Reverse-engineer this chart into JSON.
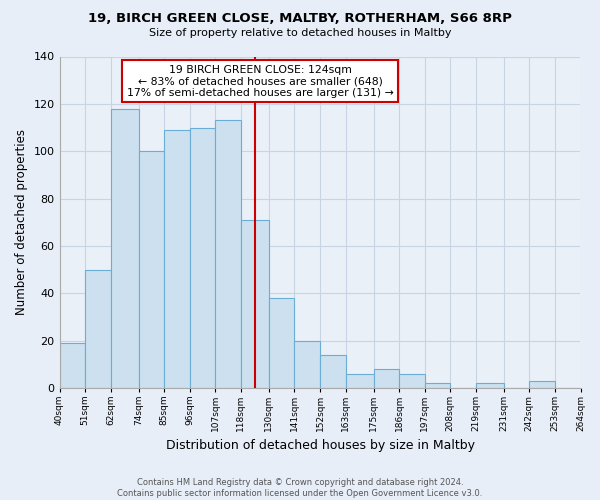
{
  "title": "19, BIRCH GREEN CLOSE, MALTBY, ROTHERHAM, S66 8RP",
  "subtitle": "Size of property relative to detached houses in Maltby",
  "xlabel": "Distribution of detached houses by size in Maltby",
  "ylabel": "Number of detached properties",
  "footer_line1": "Contains HM Land Registry data © Crown copyright and database right 2024.",
  "footer_line2": "Contains public sector information licensed under the Open Government Licence v3.0.",
  "bin_edges": [
    40,
    51,
    62,
    74,
    85,
    96,
    107,
    118,
    130,
    141,
    152,
    163,
    175,
    186,
    197,
    208,
    219,
    231,
    242,
    253,
    264
  ],
  "bar_heights": [
    19,
    50,
    118,
    100,
    109,
    110,
    113,
    71,
    38,
    20,
    14,
    6,
    8,
    6,
    2,
    0,
    2,
    0,
    3,
    0
  ],
  "tick_labels": [
    "40sqm",
    "51sqm",
    "62sqm",
    "74sqm",
    "85sqm",
    "96sqm",
    "107sqm",
    "118sqm",
    "130sqm",
    "141sqm",
    "152sqm",
    "163sqm",
    "175sqm",
    "186sqm",
    "197sqm",
    "208sqm",
    "219sqm",
    "231sqm",
    "242sqm",
    "253sqm",
    "264sqm"
  ],
  "tick_positions": [
    40,
    51,
    62,
    74,
    85,
    96,
    107,
    118,
    130,
    141,
    152,
    163,
    175,
    186,
    197,
    208,
    219,
    231,
    242,
    253,
    264
  ],
  "bar_color": "#cce0f0",
  "bar_edge_color": "#6aadd5",
  "vline_x": 124,
  "vline_color": "#cc0000",
  "annotation_box_text": "19 BIRCH GREEN CLOSE: 124sqm\n← 83% of detached houses are smaller (648)\n17% of semi-detached houses are larger (131) →",
  "annotation_box_color": "#cc0000",
  "annotation_fill_color": "#ffffff",
  "ylim": [
    0,
    140
  ],
  "yticks": [
    0,
    20,
    40,
    60,
    80,
    100,
    120,
    140
  ],
  "xlim": [
    40,
    264
  ],
  "background_color": "#e8eef8",
  "plot_bg_color": "#eaf0f8",
  "grid_color": "#c8d4e4"
}
